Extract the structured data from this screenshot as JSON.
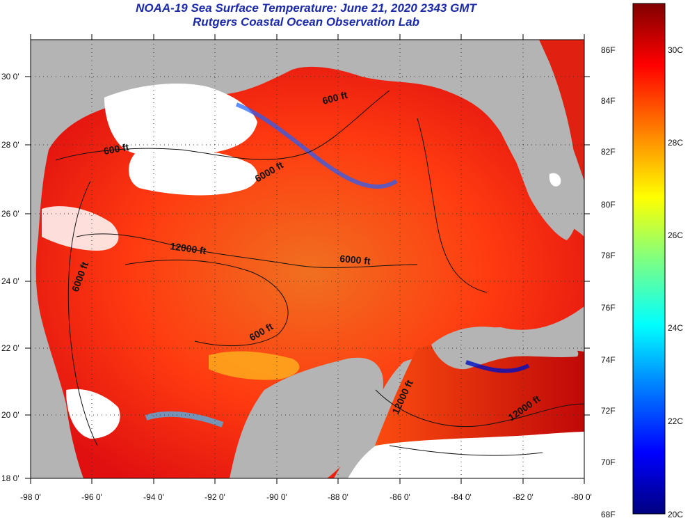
{
  "title": {
    "line1": "NOAA-19 Sea Surface Temperature:  June 21, 2020 2343 GMT",
    "line2": "Rutgers Coastal Ocean Observation Lab"
  },
  "map": {
    "lat_labels": [
      "30 0'",
      "28 0'",
      "26 0'",
      "24 0'",
      "22 0'",
      "20 0'",
      "18 0'"
    ],
    "lon_labels": [
      "-98 0'",
      "-96 0'",
      "-94 0'",
      "-92 0'",
      "-90 0'",
      "-88 0'",
      "-86 0'",
      "-84 0'",
      "-82 0'",
      "-80 0'"
    ],
    "contour_labels": [
      "600 ft",
      "600 ft",
      "6000 ft",
      "12000 ft",
      "6000 ft",
      "6000 ft",
      "600 ft",
      "12000 ft",
      "12000 ft"
    ],
    "colors": {
      "land": "#b4b4b4",
      "cloud": "#ffffff",
      "frame": "#000000"
    }
  },
  "colorbar": {
    "fahrenheit_labels": [
      "86F",
      "84F",
      "82F",
      "80F",
      "78F",
      "76F",
      "74F",
      "72F",
      "70F",
      "68F"
    ],
    "celsius_labels": [
      "30C",
      "28C",
      "26C",
      "24C",
      "22C",
      "20C"
    ],
    "stops": [
      "#000080",
      "#0000ff",
      "#0080ff",
      "#00ffff",
      "#80ff80",
      "#ffff00",
      "#ff8000",
      "#ff0000",
      "#800000"
    ]
  }
}
